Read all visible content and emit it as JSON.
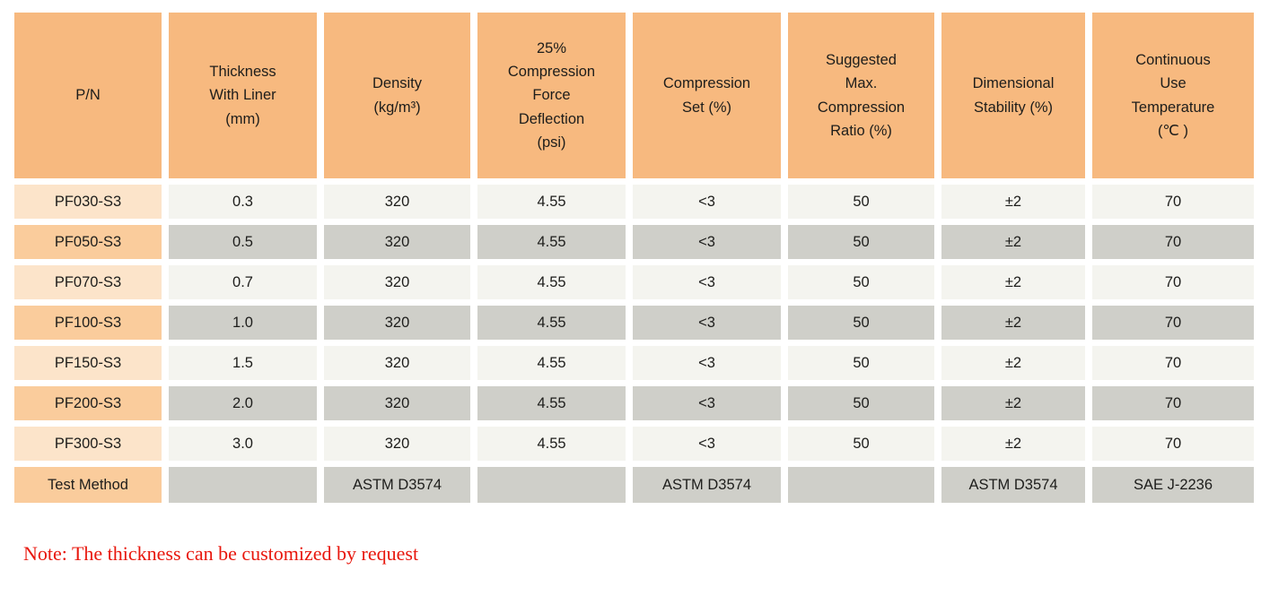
{
  "colors": {
    "header_orange": "#F7B97F",
    "row_orange": "#FACC9C",
    "row_peach": "#FCE4CA",
    "cell_gray": "#CFCFC9",
    "cell_light": "#F4F4EF",
    "note_red": "#E8170D",
    "text_dark": "#1D1D1B"
  },
  "table": {
    "columns": [
      "P/N",
      "Thickness\nWith Liner\n(mm)",
      "Density\n(kg/m³)",
      "25%\nCompression\nForce\nDeflection\n(psi)",
      "Compression\nSet (%)",
      "Suggested\nMax.\nCompression\nRatio (%)",
      "Dimensional\nStability (%)",
      "Continuous\nUse\nTemperature\n(℃ )"
    ],
    "rows": [
      [
        "PF030-S3",
        "0.3",
        "320",
        "4.55",
        "<3",
        "50",
        "±2",
        "70"
      ],
      [
        "PF050-S3",
        "0.5",
        "320",
        "4.55",
        "<3",
        "50",
        "±2",
        "70"
      ],
      [
        "PF070-S3",
        "0.7",
        "320",
        "4.55",
        "<3",
        "50",
        "±2",
        "70"
      ],
      [
        "PF100-S3",
        "1.0",
        "320",
        "4.55",
        "<3",
        "50",
        "±2",
        "70"
      ],
      [
        "PF150-S3",
        "1.5",
        "320",
        "4.55",
        "<3",
        "50",
        "±2",
        "70"
      ],
      [
        "PF200-S3",
        "2.0",
        "320",
        "4.55",
        "<3",
        "50",
        "±2",
        "70"
      ],
      [
        "PF300-S3",
        "3.0",
        "320",
        "4.55",
        "<3",
        "50",
        "±2",
        "70"
      ]
    ],
    "test_method_row": [
      "Test Method",
      "",
      "ASTM D3574",
      "",
      "ASTM D3574",
      "",
      "ASTM D3574",
      "SAE J-2236"
    ]
  },
  "note": "Note: The thickness can be customized by request"
}
